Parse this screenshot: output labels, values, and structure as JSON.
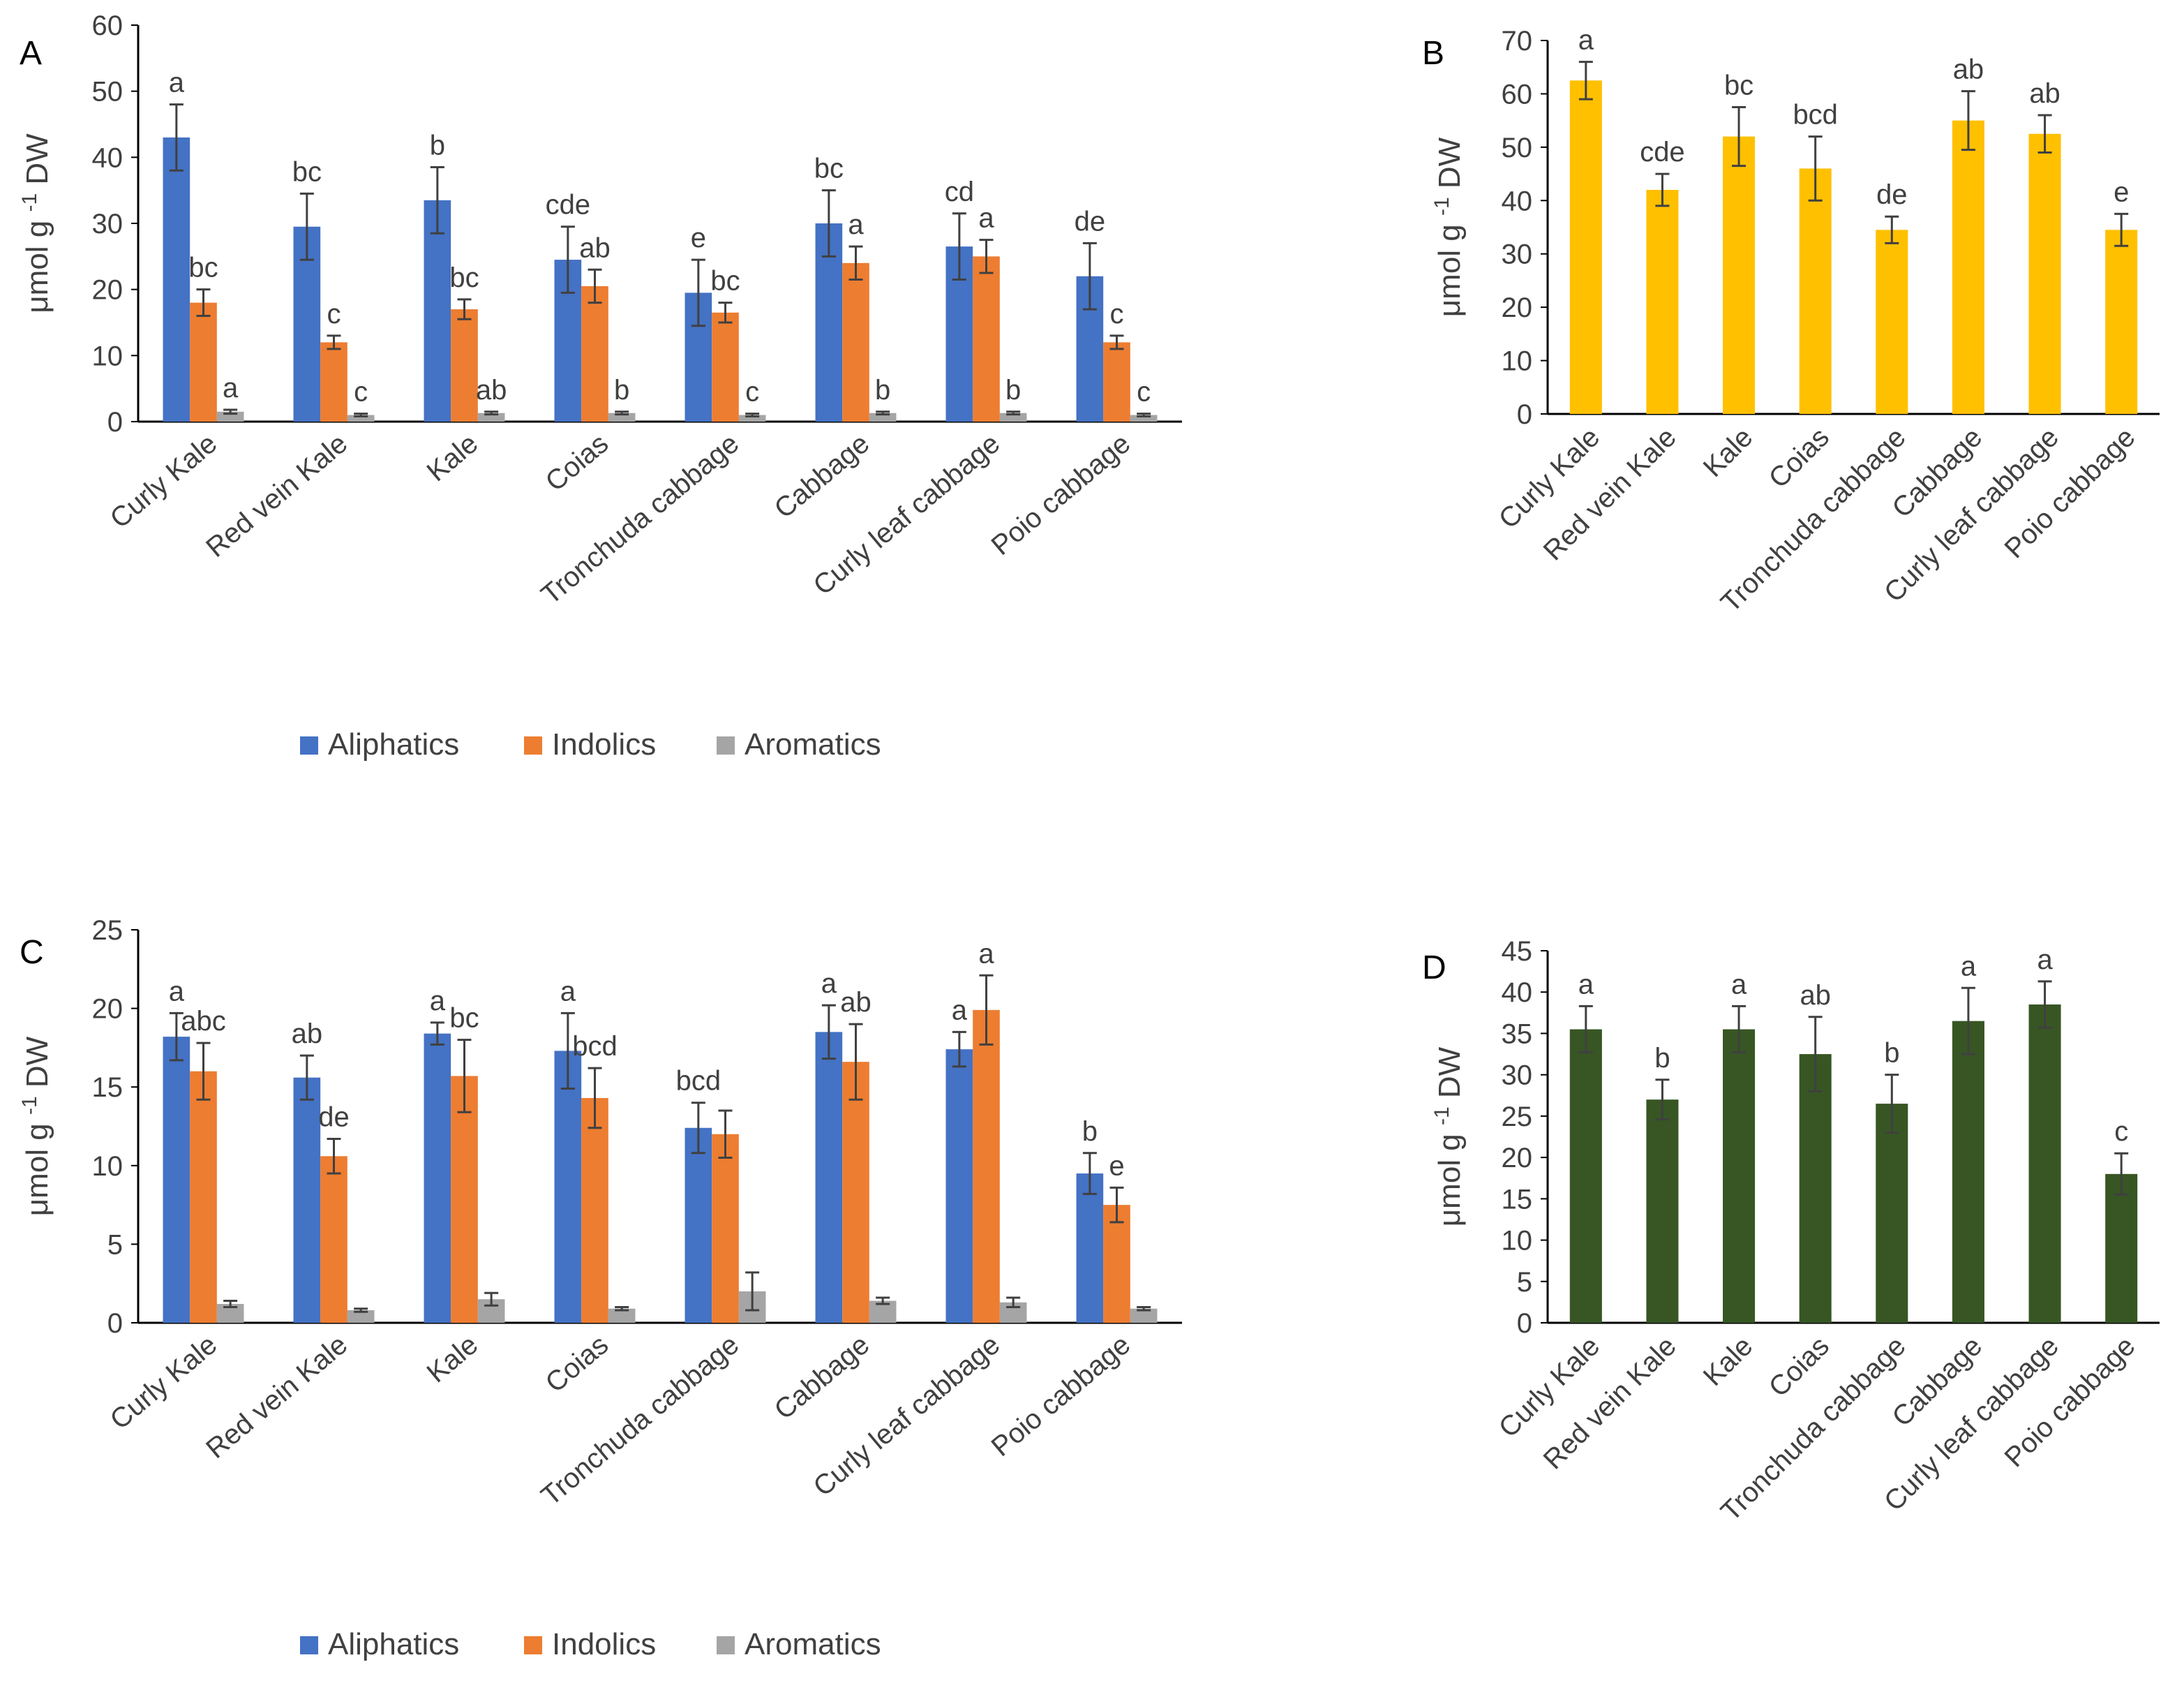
{
  "figure": {
    "y_unit_label": "μmol g",
    "y_unit_sup": "-1",
    "y_unit_suffix": "DW"
  },
  "chart_data": [
    {
      "panel": "A",
      "type": "bar",
      "categories": [
        "Curly Kale",
        "Red vein Kale",
        "Kale",
        "Coias",
        "Tronchuda cabbage",
        "Cabbage",
        "Curly leaf cabbage",
        "Poio cabbage"
      ],
      "ylim": [
        0,
        60
      ],
      "yticks": [
        0,
        10,
        20,
        30,
        40,
        50,
        60
      ],
      "ylabel": "μmol g -1 DW",
      "legend_position": "bottom",
      "series": [
        {
          "name": "Aliphatics",
          "color": "#4472C4",
          "values": [
            43,
            29.5,
            33.5,
            24.5,
            19.5,
            30,
            26.5,
            22
          ],
          "errors": [
            5,
            5,
            5,
            5,
            5,
            5,
            5,
            5
          ],
          "letters": [
            "a",
            "bc",
            "b",
            "cde",
            "e",
            "bc",
            "cd",
            "de"
          ]
        },
        {
          "name": "Indolics",
          "color": "#ED7D31",
          "values": [
            18,
            12,
            17,
            20.5,
            16.5,
            24,
            25,
            12
          ],
          "errors": [
            2,
            1,
            1.5,
            2.5,
            1.5,
            2.5,
            2.5,
            1
          ],
          "letters": [
            "bc",
            "c",
            "bc",
            "ab",
            "bc",
            "a",
            "a",
            "c"
          ]
        },
        {
          "name": "Aromatics",
          "color": "#A5A5A5",
          "values": [
            1.5,
            1,
            1.3,
            1.3,
            1,
            1.3,
            1.3,
            1
          ],
          "errors": [
            0.3,
            0.2,
            0.2,
            0.2,
            0.2,
            0.2,
            0.2,
            0.2
          ],
          "letters": [
            "a",
            "c",
            "ab",
            "b",
            "c",
            "b",
            "b",
            "c"
          ]
        }
      ]
    },
    {
      "panel": "B",
      "type": "bar",
      "categories": [
        "Curly Kale",
        "Red vein Kale",
        "Kale",
        "Coias",
        "Tronchuda cabbage",
        "Cabbage",
        "Curly leaf cabbage",
        "Poio cabbage"
      ],
      "ylim": [
        0,
        70
      ],
      "yticks": [
        0,
        10,
        20,
        30,
        40,
        50,
        60,
        70
      ],
      "ylabel": "μmol g -1 DW",
      "series": [
        {
          "name": "",
          "color": "#FFC000",
          "values": [
            62.5,
            42,
            52,
            46,
            34.5,
            55,
            52.5,
            34.5
          ],
          "errors": [
            3.5,
            3,
            5.5,
            6,
            2.5,
            5.5,
            3.5,
            3
          ],
          "letters": [
            "a",
            "cde",
            "bc",
            "bcd",
            "de",
            "ab",
            "ab",
            "e"
          ]
        }
      ]
    },
    {
      "panel": "C",
      "type": "bar",
      "categories": [
        "Curly Kale",
        "Red vein Kale",
        "Kale",
        "Coias",
        "Tronchuda cabbage",
        "Cabbage",
        "Curly leaf cabbage",
        "Poio cabbage"
      ],
      "ylim": [
        0,
        25
      ],
      "yticks": [
        0,
        5,
        10,
        15,
        20,
        25
      ],
      "ylabel": "μmol g -1 DW",
      "legend_position": "bottom",
      "series": [
        {
          "name": "Aliphatics",
          "color": "#4472C4",
          "values": [
            18.2,
            15.6,
            18.4,
            17.3,
            12.4,
            18.5,
            17.4,
            9.5
          ],
          "errors": [
            1.5,
            1.4,
            0.7,
            2.4,
            1.6,
            1.7,
            1.1,
            1.3
          ],
          "letters": [
            "a",
            "ab",
            "a",
            "a",
            "bcd",
            "a",
            "a",
            "b"
          ]
        },
        {
          "name": "Indolics",
          "color": "#ED7D31",
          "values": [
            16,
            10.6,
            15.7,
            14.3,
            12,
            16.6,
            19.9,
            7.5
          ],
          "errors": [
            1.8,
            1.1,
            2.3,
            1.9,
            1.5,
            2.4,
            2.2,
            1.1
          ],
          "letters": [
            "abc",
            "de",
            "bc",
            "bcd",
            "",
            "ab",
            "a",
            "e"
          ]
        },
        {
          "name": "Aromatics",
          "color": "#A5A5A5",
          "values": [
            1.2,
            0.8,
            1.5,
            0.9,
            2,
            1.4,
            1.3,
            0.9
          ],
          "errors": [
            0.2,
            0.1,
            0.4,
            0.1,
            1.2,
            0.2,
            0.3,
            0.1
          ],
          "letters": [
            "",
            "",
            "",
            "",
            "",
            "",
            "",
            ""
          ]
        }
      ]
    },
    {
      "panel": "D",
      "type": "bar",
      "categories": [
        "Curly Kale",
        "Red vein Kale",
        "Kale",
        "Coias",
        "Tronchuda cabbage",
        "Cabbage",
        "Curly leaf cabbage",
        "Poio cabbage"
      ],
      "ylim": [
        0,
        45
      ],
      "yticks": [
        0,
        5,
        10,
        15,
        20,
        25,
        30,
        35,
        40,
        45
      ],
      "ylabel": "μmol g -1 DW",
      "series": [
        {
          "name": "",
          "color": "#375623",
          "values": [
            35.5,
            27,
            35.5,
            32.5,
            26.5,
            36.5,
            38.5,
            18
          ],
          "errors": [
            2.8,
            2.4,
            2.8,
            4.5,
            3.5,
            4,
            2.8,
            2.5
          ],
          "letters": [
            "a",
            "b",
            "a",
            "ab",
            "b",
            "a",
            "a",
            "c"
          ]
        }
      ]
    }
  ]
}
